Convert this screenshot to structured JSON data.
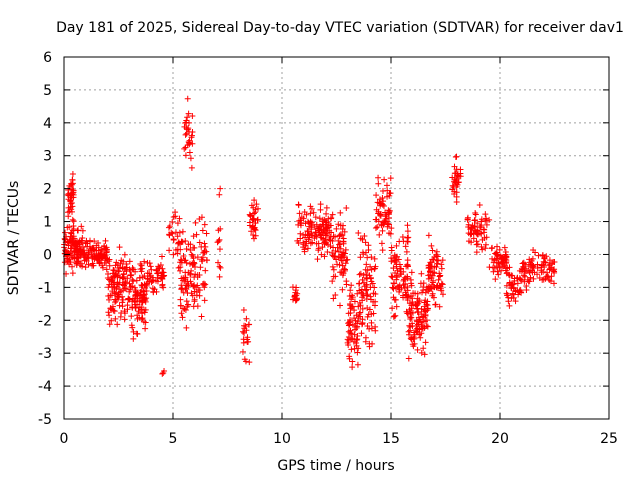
{
  "chart_data": {
    "type": "scatter",
    "title": "Day 181 of 2025, Sidereal Day-to-day VTEC variation (SDTVAR) for receiver dav1",
    "xlabel": "GPS time / hours",
    "ylabel": "SDTVAR / TECUs",
    "xlim": [
      0,
      25
    ],
    "ylim": [
      -5,
      6
    ],
    "xticks": [
      "0",
      "5",
      "10",
      "15",
      "20",
      "25"
    ],
    "yticks": [
      "-5",
      "-4",
      "-3",
      "-2",
      "-1",
      "0",
      "1",
      "2",
      "3",
      "4",
      "5",
      "6"
    ],
    "grid": true,
    "marker": "+",
    "series_color": "#ff0000",
    "segments": [
      {
        "x0": 0.0,
        "x1": 0.9,
        "center": 0.2,
        "spread": 1.0,
        "n": 120
      },
      {
        "x0": 0.15,
        "x1": 0.45,
        "center": 1.7,
        "spread": 1.0,
        "n": 40
      },
      {
        "x0": 0.9,
        "x1": 2.0,
        "center": 0.0,
        "spread": 0.6,
        "n": 100
      },
      {
        "x0": 2.0,
        "x1": 2.9,
        "center": -1.0,
        "spread": 1.4,
        "n": 110
      },
      {
        "x0": 2.9,
        "x1": 3.8,
        "center": -1.2,
        "spread": 1.6,
        "n": 110
      },
      {
        "x0": 3.8,
        "x1": 4.6,
        "center": -0.6,
        "spread": 0.9,
        "n": 50
      },
      {
        "x0": 4.5,
        "x1": 4.6,
        "center": -3.6,
        "spread": 0.1,
        "n": 3
      },
      {
        "x0": 4.8,
        "x1": 5.3,
        "center": 0.6,
        "spread": 1.2,
        "n": 25
      },
      {
        "x0": 5.3,
        "x1": 5.8,
        "center": -0.8,
        "spread": 1.8,
        "n": 60
      },
      {
        "x0": 5.5,
        "x1": 5.9,
        "center": 3.6,
        "spread": 1.4,
        "n": 30
      },
      {
        "x0": 5.8,
        "x1": 6.6,
        "center": -0.4,
        "spread": 2.0,
        "n": 70
      },
      {
        "x0": 7.0,
        "x1": 7.2,
        "center": 0.8,
        "spread": 2.0,
        "n": 12
      },
      {
        "x0": 8.2,
        "x1": 8.5,
        "center": -2.4,
        "spread": 1.2,
        "n": 20
      },
      {
        "x0": 8.5,
        "x1": 8.9,
        "center": 1.0,
        "spread": 0.9,
        "n": 30
      },
      {
        "x0": 10.5,
        "x1": 10.8,
        "center": -1.2,
        "spread": 0.3,
        "n": 15
      },
      {
        "x0": 10.7,
        "x1": 11.3,
        "center": 0.8,
        "spread": 1.2,
        "n": 40
      },
      {
        "x0": 11.3,
        "x1": 12.3,
        "center": 0.7,
        "spread": 1.0,
        "n": 90
      },
      {
        "x0": 12.3,
        "x1": 13.0,
        "center": 0.0,
        "spread": 2.0,
        "n": 70
      },
      {
        "x0": 13.0,
        "x1": 13.5,
        "center": -2.2,
        "spread": 1.6,
        "n": 60
      },
      {
        "x0": 13.5,
        "x1": 14.3,
        "center": -1.0,
        "spread": 2.6,
        "n": 90
      },
      {
        "x0": 14.3,
        "x1": 15.0,
        "center": 1.2,
        "spread": 1.4,
        "n": 60
      },
      {
        "x0": 15.0,
        "x1": 15.8,
        "center": -0.5,
        "spread": 1.8,
        "n": 90
      },
      {
        "x0": 15.8,
        "x1": 16.7,
        "center": -1.8,
        "spread": 1.6,
        "n": 110
      },
      {
        "x0": 16.7,
        "x1": 17.4,
        "center": -0.6,
        "spread": 1.4,
        "n": 70
      },
      {
        "x0": 17.8,
        "x1": 18.2,
        "center": 2.3,
        "spread": 0.9,
        "n": 35
      },
      {
        "x0": 18.5,
        "x1": 19.5,
        "center": 0.7,
        "spread": 1.0,
        "n": 60
      },
      {
        "x0": 19.5,
        "x1": 20.3,
        "center": -0.2,
        "spread": 0.6,
        "n": 60
      },
      {
        "x0": 20.3,
        "x1": 21.0,
        "center": -1.0,
        "spread": 0.8,
        "n": 50
      },
      {
        "x0": 21.0,
        "x1": 21.6,
        "center": -0.5,
        "spread": 0.7,
        "n": 40
      },
      {
        "x0": 21.6,
        "x1": 22.5,
        "center": -0.4,
        "spread": 0.8,
        "n": 45
      }
    ]
  }
}
